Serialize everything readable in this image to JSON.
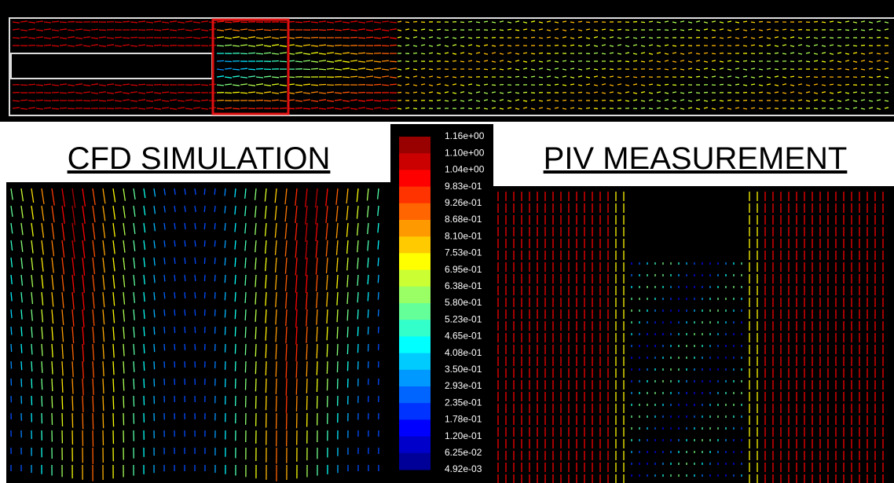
{
  "panels": {
    "left_title": "CFD SIMULATION",
    "right_title": "PIV MEASUREMENT"
  },
  "colorbar": {
    "labels": [
      "1.16e+00",
      "1.10e+00",
      "1.04e+00",
      "9.83e-01",
      "9.26e-01",
      "8.68e-01",
      "8.10e-01",
      "7.53e-01",
      "6.95e-01",
      "6.38e-01",
      "5.80e-01",
      "5.23e-01",
      "4.65e-01",
      "4.08e-01",
      "3.50e-01",
      "2.93e-01",
      "2.35e-01",
      "1.78e-01",
      "1.20e-01",
      "6.25e-02",
      "4.92e-03"
    ]
  }
}
